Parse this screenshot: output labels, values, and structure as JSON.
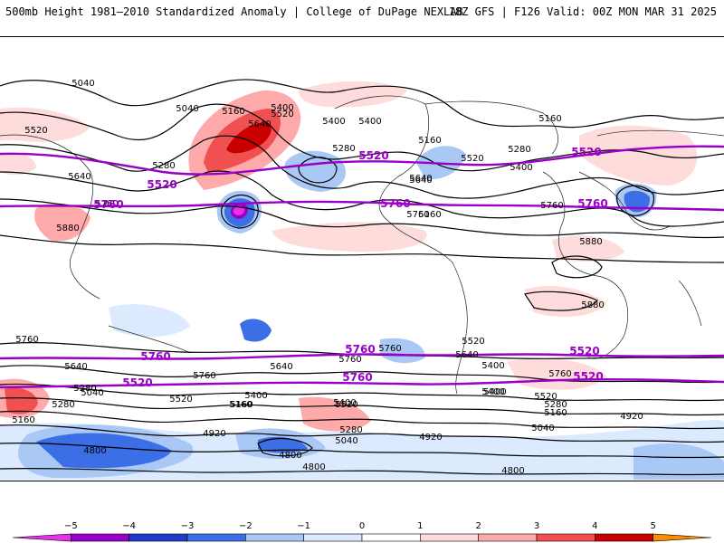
{
  "header": {
    "left": "500mb Height 1981–2010 Standardized Anomaly | College of DuPage NEXLAB",
    "right": "18Z GFS | F126 Valid: 00Z MON MAR 31 2025"
  },
  "colors": {
    "anomaly_fill": [
      "#e830e8",
      "#9b00c8",
      "#1e3cc8",
      "#3c6ee6",
      "#aac8f5",
      "#dceaff",
      "#ffffff",
      "#ffdcdc",
      "#ffaaaa",
      "#f05050",
      "#c80000",
      "#ff8c00"
    ],
    "thin_contour": "#000000",
    "thick_contour": "#9a00c8"
  },
  "contour_labels": {
    "black": [
      "5040",
      "5040",
      "5160",
      "5520",
      "5400",
      "5280",
      "5640",
      "5640",
      "5520",
      "5400",
      "5280",
      "5400",
      "5160",
      "5640",
      "5760",
      "5760",
      "5160",
      "5280",
      "5520",
      "5400",
      "5640",
      "5160",
      "5760",
      "5880",
      "5880",
      "5880",
      "5760",
      "5640",
      "5760",
      "5640",
      "5760",
      "5400",
      "5160",
      "5280",
      "5040",
      "5640",
      "5280",
      "5520",
      "5400",
      "5160",
      "5400",
      "5520",
      "5040",
      "5280",
      "4920",
      "4800",
      "4920",
      "4800",
      "4800",
      "5520",
      "5400",
      "5280",
      "5160",
      "5040",
      "4920",
      "4800",
      "5760",
      "5400",
      "5160",
      "5520",
      "5760"
    ],
    "purple": [
      "5520",
      "5520",
      "5520",
      "5760",
      "5760",
      "5760",
      "5760",
      "5760",
      "5520",
      "5520",
      "5760",
      "5520"
    ]
  },
  "colorbar": {
    "ticks": [
      "−5",
      "−4",
      "−3",
      "−2",
      "−1",
      "0",
      "1",
      "2",
      "3",
      "4",
      "5"
    ]
  }
}
